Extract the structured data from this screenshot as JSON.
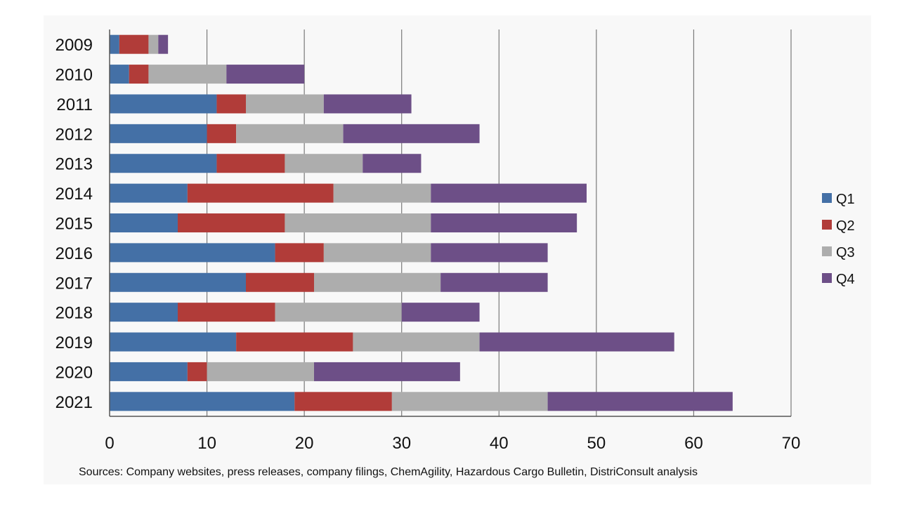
{
  "chart_data": {
    "type": "bar",
    "orientation": "horizontal",
    "stacked": true,
    "categories": [
      "2009",
      "2010",
      "2011",
      "2012",
      "2013",
      "2014",
      "2015",
      "2016",
      "2017",
      "2018",
      "2019",
      "2020",
      "2021"
    ],
    "series": [
      {
        "name": "Q1",
        "color": "#4470a6",
        "values": [
          1,
          2,
          11,
          10,
          11,
          8,
          7,
          17,
          14,
          7,
          13,
          8,
          19
        ]
      },
      {
        "name": "Q2",
        "color": "#b13c39",
        "values": [
          3,
          2,
          3,
          3,
          7,
          15,
          11,
          5,
          7,
          10,
          12,
          2,
          10
        ]
      },
      {
        "name": "Q3",
        "color": "#adadad",
        "values": [
          1,
          8,
          8,
          11,
          8,
          10,
          15,
          11,
          13,
          13,
          13,
          11,
          16
        ]
      },
      {
        "name": "Q4",
        "color": "#6d4f87",
        "values": [
          1,
          8,
          9,
          14,
          6,
          16,
          15,
          12,
          11,
          8,
          20,
          15,
          19
        ]
      }
    ],
    "xlim": [
      0,
      70
    ],
    "x_ticks": [
      "0",
      "10",
      "20",
      "30",
      "40",
      "50",
      "60",
      "70"
    ],
    "grid": "vertical",
    "legend_placement": "right",
    "title": "",
    "xlabel": "",
    "ylabel": ""
  },
  "source_note": "Sources: Company websites, press releases, company filings, ChemAgility, Hazardous Cargo Bulletin, DistriConsult analysis"
}
